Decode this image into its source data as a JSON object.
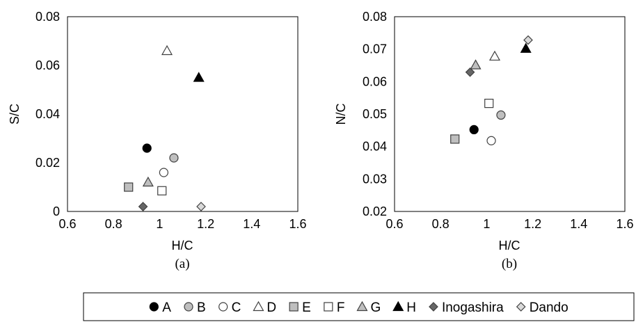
{
  "chart_data": [
    {
      "type": "scatter",
      "sublabel": "(a)",
      "xlabel": "H/C",
      "ylabel": "S/C",
      "xlim": [
        0.6,
        1.6
      ],
      "ylim": [
        0,
        0.08
      ],
      "xticks": [
        "0.6",
        "0.8",
        "1",
        "1.2",
        "1.4",
        "1.6"
      ],
      "yticks": [
        "0",
        "0.02",
        "0.04",
        "0.06",
        "0.08"
      ],
      "series": [
        {
          "name": "A",
          "x": 0.945,
          "y": 0.026
        },
        {
          "name": "B",
          "x": 1.062,
          "y": 0.022
        },
        {
          "name": "C",
          "x": 1.018,
          "y": 0.016
        },
        {
          "name": "D",
          "x": 1.032,
          "y": 0.066
        },
        {
          "name": "E",
          "x": 0.865,
          "y": 0.01
        },
        {
          "name": "F",
          "x": 1.01,
          "y": 0.0085
        },
        {
          "name": "G",
          "x": 0.95,
          "y": 0.012
        },
        {
          "name": "H",
          "x": 1.17,
          "y": 0.055
        },
        {
          "name": "Inogashira",
          "x": 0.928,
          "y": 0.002
        },
        {
          "name": "Dando",
          "x": 1.18,
          "y": 0.002
        }
      ]
    },
    {
      "type": "scatter",
      "sublabel": "(b)",
      "xlabel": "H/C",
      "ylabel": "N/C",
      "xlim": [
        0.6,
        1.6
      ],
      "ylim": [
        0.02,
        0.08
      ],
      "xticks": [
        "0.6",
        "0.8",
        "1",
        "1.2",
        "1.4",
        "1.6"
      ],
      "yticks": [
        "0.02",
        "0.03",
        "0.04",
        "0.05",
        "0.06",
        "0.07",
        "0.08"
      ],
      "series": [
        {
          "name": "A",
          "x": 0.945,
          "y": 0.0452
        },
        {
          "name": "B",
          "x": 1.062,
          "y": 0.0497
        },
        {
          "name": "C",
          "x": 1.02,
          "y": 0.0418
        },
        {
          "name": "D",
          "x": 1.035,
          "y": 0.0678
        },
        {
          "name": "E",
          "x": 0.862,
          "y": 0.0423
        },
        {
          "name": "F",
          "x": 1.01,
          "y": 0.0533
        },
        {
          "name": "G",
          "x": 0.952,
          "y": 0.0651
        },
        {
          "name": "H",
          "x": 1.17,
          "y": 0.0702
        },
        {
          "name": "Inogashira",
          "x": 0.928,
          "y": 0.0629
        },
        {
          "name": "Dando",
          "x": 1.18,
          "y": 0.0728
        }
      ]
    }
  ],
  "legend": [
    {
      "name": "A",
      "marker": "circle",
      "fill": "#000000"
    },
    {
      "name": "B",
      "marker": "circle",
      "fill": "#bfbfbf"
    },
    {
      "name": "C",
      "marker": "circle",
      "fill": "#ffffff"
    },
    {
      "name": "D",
      "marker": "triangle",
      "fill": "#ffffff"
    },
    {
      "name": "E",
      "marker": "square",
      "fill": "#bfbfbf"
    },
    {
      "name": "F",
      "marker": "square",
      "fill": "#ffffff"
    },
    {
      "name": "G",
      "marker": "triangle",
      "fill": "#bfbfbf"
    },
    {
      "name": "H",
      "marker": "triangle",
      "fill": "#000000"
    },
    {
      "name": "Inogashira",
      "marker": "diamond",
      "fill": "#666666"
    },
    {
      "name": "Dando",
      "marker": "diamond",
      "fill": "#d9d9d9"
    }
  ]
}
